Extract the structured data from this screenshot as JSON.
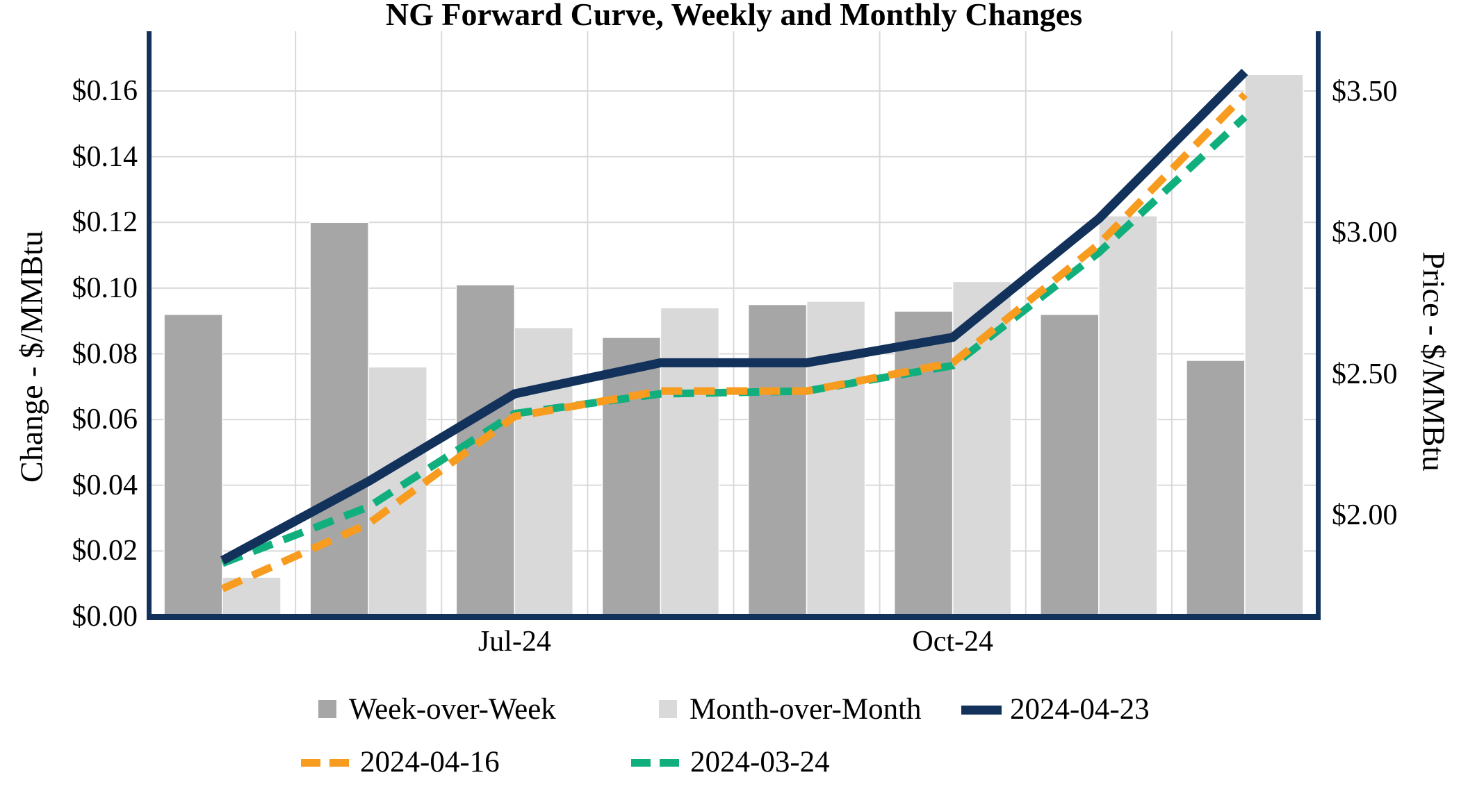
{
  "chart_data": {
    "type": "combo-bar-line",
    "title": "NG Forward Curve, Weekly and Monthly Changes",
    "categories_count": 8,
    "x_ticks": [
      {
        "index": 2,
        "label": "Jul-24"
      },
      {
        "index": 5,
        "label": "Oct-24"
      }
    ],
    "left_axis": {
      "label": "Change - $/MMBtu",
      "min": 0,
      "max": 0.16,
      "ticks": [
        {
          "label": "$0.00",
          "value": 0.0
        },
        {
          "label": "$0.02",
          "value": 0.02
        },
        {
          "label": "$0.04",
          "value": 0.04
        },
        {
          "label": "$0.06",
          "value": 0.06
        },
        {
          "label": "$0.08",
          "value": 0.08
        },
        {
          "label": "$0.10",
          "value": 0.1
        },
        {
          "label": "$0.12",
          "value": 0.12
        },
        {
          "label": "$0.14",
          "value": 0.14
        },
        {
          "label": "$0.16",
          "value": 0.16
        }
      ]
    },
    "right_axis": {
      "label": "Price - $/MMBtu",
      "ticks": [
        {
          "label": "$2.00",
          "value": 2.0
        },
        {
          "label": "$2.50",
          "value": 2.5
        },
        {
          "label": "$3.00",
          "value": 3.0
        },
        {
          "label": "$3.50",
          "value": 3.5
        }
      ]
    },
    "bar_series": [
      {
        "name": "Week-over-Week",
        "axis": "left",
        "color": "#A6A6A6",
        "values": [
          0.092,
          0.12,
          0.101,
          0.085,
          0.095,
          0.093,
          0.092,
          0.078
        ]
      },
      {
        "name": "Month-over-Month",
        "axis": "left",
        "color": "#D9D9D9",
        "values": [
          0.012,
          0.076,
          0.088,
          0.094,
          0.096,
          0.102,
          0.122,
          0.165
        ]
      }
    ],
    "line_series": [
      {
        "name": "2024-03-24",
        "axis": "right",
        "color": "#12AF7E",
        "style": "dashed",
        "values": [
          1.83,
          2.03,
          2.36,
          2.43,
          2.44,
          2.53,
          2.93,
          3.41
        ]
      },
      {
        "name": "2024-04-16",
        "axis": "right",
        "color": "#F89C20",
        "style": "dashed",
        "values": [
          1.74,
          1.97,
          2.35,
          2.44,
          2.44,
          2.54,
          2.96,
          3.49
        ]
      },
      {
        "name": "2024-04-23",
        "axis": "right",
        "color": "#12325B",
        "style": "solid",
        "values": [
          1.84,
          2.12,
          2.43,
          2.54,
          2.54,
          2.63,
          3.05,
          3.57
        ]
      }
    ],
    "grid": {
      "color": "#D9D9D9",
      "horizontal": true,
      "vertical": true
    },
    "axis_line_color": "#12325B",
    "legend_position": "bottom"
  }
}
